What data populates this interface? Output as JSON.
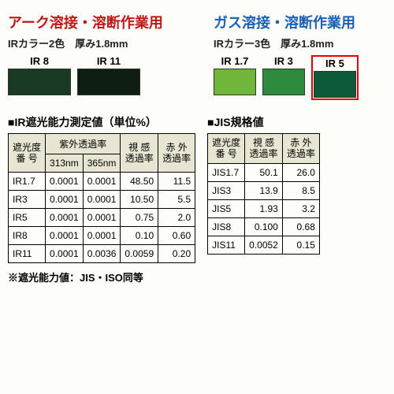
{
  "left_header": {
    "title": "アーク溶接・溶断作業用",
    "title_color": "#c01818",
    "subtitle": "IRカラー2色　厚み1.8mm",
    "swatches": [
      {
        "label": "IR 8",
        "color": "#1a3a24",
        "highlight": false
      },
      {
        "label": "IR 11",
        "color": "#0e1e12",
        "highlight": false
      }
    ]
  },
  "right_header": {
    "title": "ガス溶接・溶断作業用",
    "title_color": "#1a5fb4",
    "subtitle": "IRカラー3色　厚み1.8mm",
    "swatches": [
      {
        "label": "IR 1.7",
        "color": "#6fb63a",
        "highlight": false
      },
      {
        "label": "IR 3",
        "color": "#2e8b3d",
        "highlight": false
      },
      {
        "label": "IR 5",
        "color": "#0d5a3a",
        "highlight": true
      }
    ]
  },
  "table1": {
    "title": "■IR遮光能力測定値（単位%）",
    "header_bg": "#e8e6d2",
    "cols": {
      "col1": "遮光度\n番 号",
      "col2_top": "紫外透過率",
      "col2a": "313nm",
      "col2b": "365nm",
      "col3": "視 感\n透過率",
      "col4": "赤 外\n透過率"
    },
    "rows": [
      {
        "no": "IR1.7",
        "uv313": "0.0001",
        "uv365": "0.0001",
        "vis": "48.50",
        "ir": "11.5"
      },
      {
        "no": "IR3",
        "uv313": "0.0001",
        "uv365": "0.0001",
        "vis": "10.50",
        "ir": "5.5"
      },
      {
        "no": "IR5",
        "uv313": "0.0001",
        "uv365": "0.0001",
        "vis": "0.75",
        "ir": "2.0"
      },
      {
        "no": "IR8",
        "uv313": "0.0001",
        "uv365": "0.0001",
        "vis": "0.10",
        "ir": "0.60"
      },
      {
        "no": "IR11",
        "uv313": "0.0001",
        "uv365": "0.0036",
        "vis": "0.0059",
        "ir": "0.20"
      }
    ]
  },
  "table2": {
    "title": "■JIS規格値",
    "header_bg": "#e8e6d2",
    "cols": {
      "col1": "遮光度\n番 号",
      "col2": "視 感\n透過率",
      "col3": "赤 外\n透過率"
    },
    "rows": [
      {
        "no": "JIS1.7",
        "vis": "50.1",
        "ir": "26.0"
      },
      {
        "no": "JIS3",
        "vis": "13.9",
        "ir": "8.5"
      },
      {
        "no": "JIS5",
        "vis": "1.93",
        "ir": "3.2"
      },
      {
        "no": "JIS8",
        "vis": "0.100",
        "ir": "0.68"
      },
      {
        "no": "JIS11",
        "vis": "0.0052",
        "ir": "0.15"
      }
    ]
  },
  "footnote": "※遮光能力値：JIS・ISO同等"
}
